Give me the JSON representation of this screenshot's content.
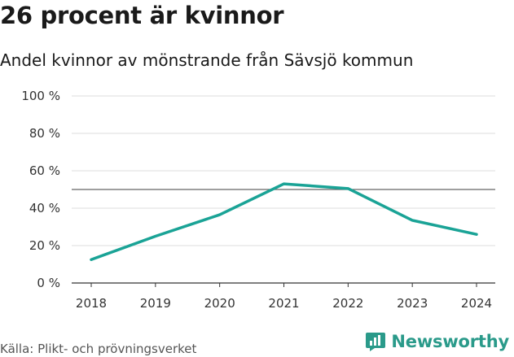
{
  "header": {
    "title": "26 procent är kvinnor",
    "subtitle": "Andel kvinnor av mönstrande från Sävsjö kommun"
  },
  "footer": {
    "source": "Källa: Plikt- och prövningsverket",
    "brand": "Newsworthy"
  },
  "colors": {
    "line": "#1aa396",
    "grid": "#dddddd",
    "reference": "#666666",
    "brand": "#2a9a8a"
  },
  "chart_data": {
    "type": "line",
    "title": "26 procent är kvinnor",
    "subtitle": "Andel kvinnor av mönstrande från Sävsjö kommun",
    "xlabel": "",
    "ylabel": "",
    "x": [
      "2018",
      "2019",
      "2020",
      "2021",
      "2022",
      "2023",
      "2024"
    ],
    "series": [
      {
        "values": [
          12.5,
          25,
          36.5,
          53,
          50.5,
          33.5,
          26
        ]
      }
    ],
    "reference_line": 50,
    "ylim": [
      0,
      100
    ],
    "yticks": [
      0,
      20,
      40,
      60,
      80,
      100
    ],
    "ytick_labels": [
      "0 %",
      "20 %",
      "40 %",
      "60 %",
      "80 %",
      "100 %"
    ],
    "grid": true,
    "legend": "none"
  }
}
